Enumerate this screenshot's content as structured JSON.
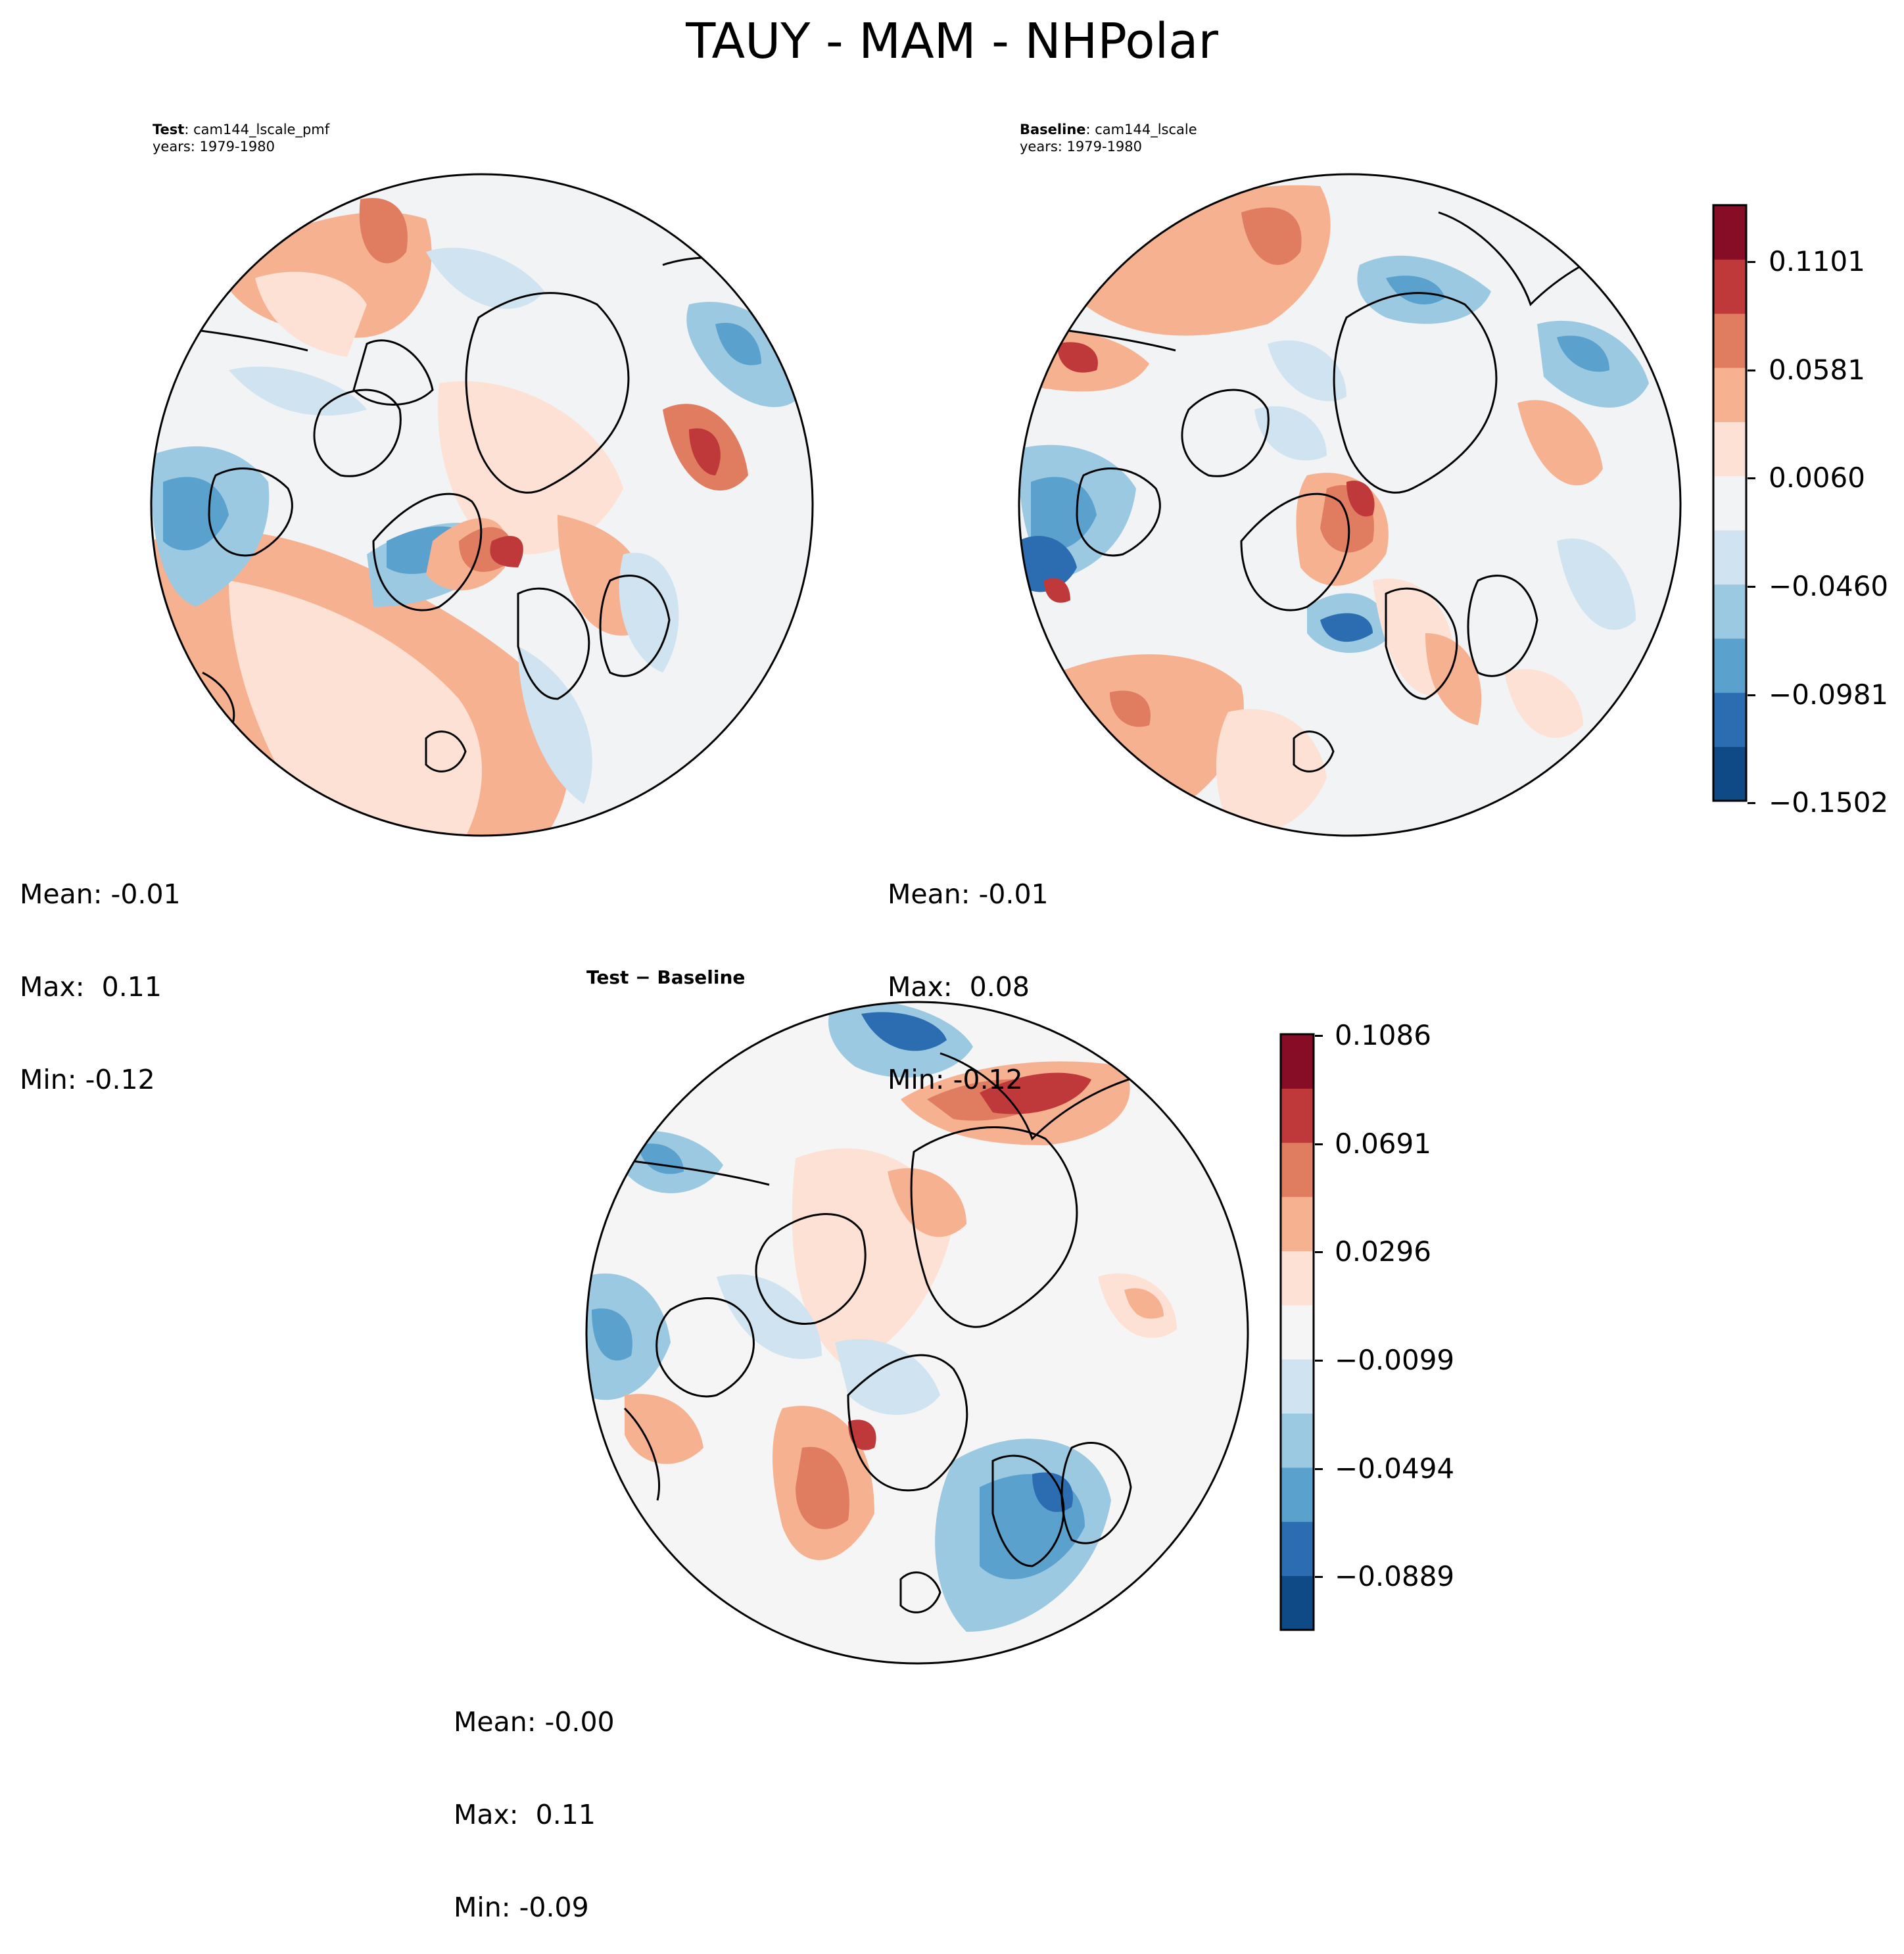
{
  "figure_title": "TAUY - MAM - NHPolar",
  "panels": [
    {
      "id": "test",
      "label_bold": "Test",
      "label_rest": ": cam144_lscale_pmf",
      "years": "years: 1979-1980",
      "stats": {
        "mean": "Mean: -0.01",
        "max": "Max:  0.11",
        "min": "Min: -0.12"
      }
    },
    {
      "id": "baseline",
      "label_bold": "Baseline",
      "label_rest": ": cam144_lscale",
      "years": "years: 1979-1980",
      "stats": {
        "mean": "Mean: -0.01",
        "max": "Max:  0.08",
        "min": "Min: -0.12"
      }
    },
    {
      "id": "diff",
      "label": "Test − Baseline",
      "stats": {
        "mean": "Mean: -0.00",
        "max": "Max:  0.11",
        "min": "Min: -0.09"
      }
    }
  ],
  "colorbars": [
    {
      "id": "main",
      "colors": [
        "#0f4a86",
        "#2c6db1",
        "#5aa1cd",
        "#9bc9e2",
        "#d0e3f0",
        "#f1f3f5",
        "#fde1d4",
        "#f6b191",
        "#e07c60",
        "#c0393a",
        "#860d25"
      ],
      "ticks": [
        "0.1101",
        "0.0581",
        "0.0060",
        "−0.0460",
        "−0.0981",
        "−0.1502"
      ]
    },
    {
      "id": "diff",
      "colors": [
        "#0f4a86",
        "#2c6db1",
        "#5aa1cd",
        "#9bc9e2",
        "#d0e3f0",
        "#f5f5f5",
        "#fde1d4",
        "#f6b191",
        "#e07c60",
        "#c0393a",
        "#860d25"
      ],
      "ticks": [
        "0.1086",
        "0.0691",
        "0.0296",
        "−0.0099",
        "−0.0494",
        "−0.0889"
      ]
    }
  ],
  "colors": {
    "ocean_neutral": "#f1f3f5",
    "weak_positive": "#fde1d4",
    "moderate_positive": "#f6b191",
    "strong_positive": "#e07c60",
    "very_strong_positive": "#c0393a",
    "weak_negative": "#d0e3f0",
    "moderate_negative": "#9bc9e2",
    "strong_negative": "#5aa1cd"
  }
}
